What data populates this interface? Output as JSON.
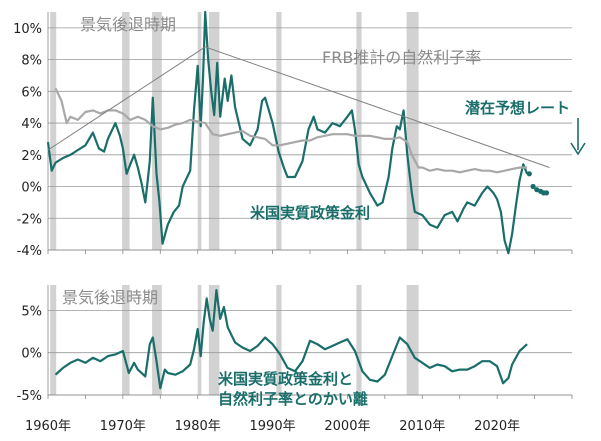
{
  "colors": {
    "real_rate": "#1a6e6a",
    "natural_rate": "#a8a8a8",
    "trend": "#808080",
    "recession": "#d2d2d2",
    "grid": "#9a9a9a"
  },
  "chart_data": [
    {
      "type": "line",
      "id": "top",
      "ylim": [
        -4,
        11
      ],
      "xlim": [
        1960,
        2030
      ],
      "yticks": [
        -4,
        -2,
        0,
        2,
        4,
        6,
        8,
        10
      ],
      "ytick_labels": [
        "-4%",
        "-2%",
        "0%",
        "2%",
        "4%",
        "6%",
        "8%",
        "10%"
      ],
      "grid": true,
      "recessions": [
        [
          1960.3,
          1961.1
        ],
        [
          1969.9,
          1970.9
        ],
        [
          1973.9,
          1975.2
        ],
        [
          1980.0,
          1980.5
        ],
        [
          1981.5,
          1982.9
        ],
        [
          1990.5,
          1991.2
        ],
        [
          2001.2,
          2001.9
        ],
        [
          2007.9,
          2009.5
        ]
      ],
      "annotations": {
        "recession": "景気後退時期",
        "natural_rate": "FRB推計の自然利子率",
        "real_rate": "米国実質政策金利",
        "potential": "潜在予想レート"
      },
      "series": [
        {
          "role": "real_rate",
          "x": [
            1960,
            1960.5,
            1961,
            1962,
            1963,
            1964,
            1965,
            1966,
            1966.8,
            1967.5,
            1968,
            1969,
            1969.6,
            1970,
            1970.5,
            1971,
            1971.5,
            1972,
            1972.5,
            1973,
            1973.6,
            1974,
            1974.5,
            1974.9,
            1975.3,
            1976,
            1976.8,
            1977.5,
            1978,
            1978.6,
            1979,
            1979.5,
            1980,
            1980.4,
            1980.7,
            1981,
            1981.4,
            1981.8,
            1982.2,
            1982.6,
            1983,
            1983.6,
            1984,
            1984.5,
            1985,
            1986,
            1987,
            1988,
            1988.6,
            1989,
            1990,
            1990.8,
            1991.5,
            1992,
            1993,
            1994,
            1994.8,
            1995.5,
            1996,
            1997,
            1998,
            1999,
            2000,
            2000.6,
            2001,
            2001.5,
            2002,
            2003,
            2004,
            2004.7,
            2005.5,
            2006,
            2006.6,
            2007,
            2007.5,
            2008,
            2008.6,
            2009,
            2010,
            2011,
            2012,
            2013,
            2014,
            2014.7,
            2015.5,
            2016,
            2017,
            2018,
            2018.7,
            2019.5,
            2020,
            2020.5,
            2021,
            2021.5,
            2022,
            2022.5,
            2023,
            2023.5,
            2024
          ],
          "y": [
            2.8,
            1.0,
            1.5,
            1.8,
            2.0,
            2.3,
            2.6,
            3.4,
            2.4,
            2.2,
            3.0,
            4.0,
            3.2,
            2.4,
            0.8,
            1.4,
            2.0,
            1.2,
            0.2,
            -1.0,
            1.6,
            5.6,
            0.8,
            -1.0,
            -3.6,
            -2.4,
            -1.6,
            -1.2,
            0.0,
            0.6,
            1.0,
            4.8,
            7.6,
            3.8,
            6.8,
            11.0,
            8.0,
            6.0,
            4.5,
            7.8,
            4.4,
            6.8,
            5.4,
            7.0,
            5.0,
            3.0,
            2.6,
            3.6,
            5.4,
            5.6,
            4.0,
            2.2,
            1.2,
            0.6,
            0.6,
            1.6,
            3.6,
            4.4,
            3.6,
            3.4,
            4.0,
            3.8,
            4.4,
            4.8,
            3.6,
            1.4,
            0.6,
            -0.4,
            -1.2,
            -1.0,
            0.6,
            2.4,
            3.8,
            3.6,
            4.8,
            2.0,
            -0.4,
            -1.6,
            -1.8,
            -2.4,
            -2.6,
            -1.8,
            -1.6,
            -2.2,
            -1.4,
            -1.0,
            -1.2,
            -0.4,
            0.0,
            -0.4,
            -0.8,
            -1.6,
            -3.4,
            -4.2,
            -3.0,
            -1.2,
            0.4,
            1.4,
            0.8
          ]
        },
        {
          "role": "natural_rate",
          "x": [
            1961,
            1961.8,
            1962.5,
            1963,
            1964,
            1965,
            1966,
            1967,
            1968,
            1969,
            1970,
            1971,
            1972,
            1973,
            1974,
            1975,
            1976,
            1977,
            1978,
            1979,
            1980,
            1981,
            1982,
            1983,
            1984,
            1985,
            1986,
            1987,
            1988,
            1989,
            1990,
            1991,
            1992,
            1993,
            1994,
            1995,
            1996,
            1997,
            1998,
            1999,
            2000,
            2001,
            2002,
            2003,
            2004,
            2005,
            2006,
            2007,
            2008,
            2008.6,
            2009.5,
            2010,
            2011,
            2012,
            2013,
            2014,
            2015,
            2016,
            2017,
            2018,
            2019,
            2020,
            2021,
            2022,
            2023,
            2024
          ],
          "y": [
            6.2,
            5.4,
            4.0,
            4.4,
            4.2,
            4.7,
            4.8,
            4.6,
            4.8,
            4.8,
            4.6,
            4.2,
            4.4,
            4.2,
            3.8,
            3.6,
            3.7,
            3.9,
            4.0,
            4.2,
            4.1,
            4.0,
            3.3,
            3.2,
            3.3,
            3.4,
            3.5,
            3.2,
            3.1,
            3.0,
            2.6,
            2.6,
            2.7,
            2.8,
            2.9,
            2.9,
            3.1,
            3.2,
            3.3,
            3.3,
            3.3,
            3.2,
            3.2,
            3.2,
            3.1,
            3.0,
            3.0,
            3.1,
            2.8,
            2.0,
            1.2,
            1.2,
            1.0,
            1.1,
            1.0,
            1.0,
            0.9,
            1.0,
            1.1,
            1.0,
            1.0,
            0.9,
            1.0,
            1.1,
            1.2,
            1.2
          ]
        },
        {
          "role": "trend",
          "x": [
            1960,
            1981,
            2027
          ],
          "y": [
            2.3,
            8.8,
            1.2
          ]
        },
        {
          "role": "potential",
          "x": [
            2024.3,
            2024.8,
            2025.3,
            2025.8,
            2026.2,
            2026.6
          ],
          "y": [
            0.8,
            0.0,
            -0.2,
            -0.3,
            -0.4,
            -0.4
          ]
        }
      ]
    },
    {
      "type": "line",
      "id": "bottom",
      "ylim": [
        -5,
        8
      ],
      "xlim": [
        1960,
        2030
      ],
      "yticks": [
        -5,
        0,
        5
      ],
      "ytick_labels": [
        "-5%",
        "0%",
        "5%"
      ],
      "grid": true,
      "recessions": [
        [
          1960.3,
          1961.1
        ],
        [
          1969.9,
          1970.9
        ],
        [
          1973.9,
          1975.2
        ],
        [
          1980.0,
          1980.5
        ],
        [
          1981.5,
          1982.9
        ],
        [
          1990.5,
          1991.2
        ],
        [
          2001.2,
          2001.9
        ],
        [
          2007.9,
          2009.5
        ]
      ],
      "x_tick_labels": [
        "1960年",
        "1970年",
        "1980年",
        "1990年",
        "2000年",
        "2010年",
        "2020年"
      ],
      "x_ticks": [
        1960,
        1970,
        1980,
        1990,
        2000,
        2010,
        2020
      ],
      "annotations": {
        "recession": "景気後退時期",
        "gap_line1": "米国実質政策金利と",
        "gap_line2": "自然利子率とのかい離"
      },
      "series": [
        {
          "role": "gap",
          "x": [
            1961,
            1962,
            1963,
            1964,
            1965,
            1966,
            1967,
            1968,
            1969,
            1970,
            1970.8,
            1971.5,
            1972,
            1973,
            1973.6,
            1974,
            1974.5,
            1975,
            1975.6,
            1976,
            1977,
            1978,
            1979,
            1979.5,
            1980,
            1980.4,
            1980.8,
            1981.2,
            1981.6,
            1982,
            1982.5,
            1983,
            1983.5,
            1984,
            1985,
            1986,
            1987,
            1988,
            1989,
            1990,
            1991,
            1992,
            1993,
            1994,
            1995,
            1996,
            1997,
            1998,
            1999,
            2000,
            2001,
            2002,
            2003,
            2004,
            2005,
            2006,
            2007,
            2008,
            2009,
            2010,
            2011,
            2012,
            2013,
            2014,
            2015,
            2016,
            2017,
            2018,
            2019,
            2020,
            2020.8,
            2021.5,
            2022,
            2023,
            2024
          ],
          "y": [
            -2.6,
            -1.8,
            -1.2,
            -0.8,
            -1.2,
            -0.6,
            -1.0,
            -0.4,
            -0.2,
            0.2,
            -2.4,
            -1.2,
            -2.0,
            -2.8,
            1.0,
            1.8,
            -1.0,
            -4.2,
            -2.0,
            -2.4,
            -2.6,
            -2.2,
            -1.4,
            0.4,
            2.8,
            -0.4,
            3.6,
            6.4,
            4.0,
            2.6,
            7.4,
            4.0,
            5.4,
            3.0,
            1.2,
            0.6,
            0.2,
            0.8,
            1.8,
            1.0,
            -0.2,
            -1.8,
            -2.2,
            -1.0,
            1.4,
            1.0,
            0.4,
            0.8,
            1.2,
            1.6,
            0.2,
            -2.2,
            -3.2,
            -3.4,
            -2.6,
            -0.4,
            1.8,
            1.0,
            -0.6,
            -1.2,
            -1.8,
            -1.4,
            -1.6,
            -2.2,
            -2.0,
            -2.0,
            -1.6,
            -1.0,
            -1.0,
            -1.6,
            -3.6,
            -3.0,
            -1.4,
            0.2,
            1.0
          ]
        }
      ]
    }
  ]
}
